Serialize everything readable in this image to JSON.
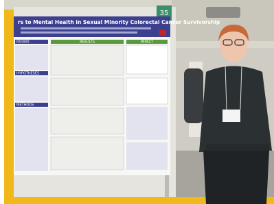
{
  "poster": {
    "title": "rs to Mental Health in Sexual Minority Colorectal Cancer Survivorship",
    "number": "35",
    "sections": [
      "ROUND",
      "HYPOTHESES",
      "METHODS",
      "RESULTS",
      "IMPACT"
    ]
  }
}
